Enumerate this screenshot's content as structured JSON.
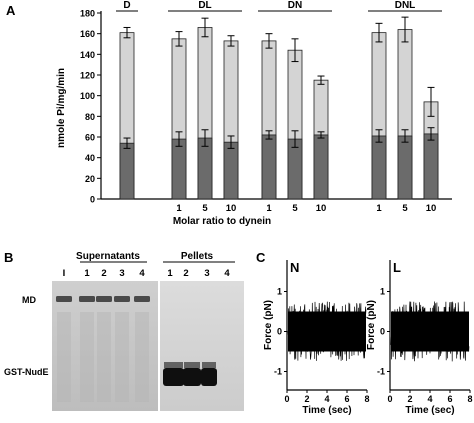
{
  "figure": {
    "panel_a_letter": "A",
    "panel_b_letter": "B",
    "panel_c_letter": "C"
  },
  "chart_data": [
    {
      "type": "bar",
      "panel": "A",
      "ylabel": "nmole Pi/mg/min",
      "xlabel": "Molar ratio to dynein",
      "ylim": [
        0,
        180
      ],
      "yticks": [
        0,
        20,
        40,
        60,
        80,
        100,
        120,
        140,
        160,
        180
      ],
      "groups": [
        {
          "label": "D",
          "bars": [
            {
              "tick": "",
              "light": 161,
              "light_err": 5,
              "dark": 54,
              "dark_err": 5
            }
          ]
        },
        {
          "label": "DL",
          "bars": [
            {
              "tick": "1",
              "light": 155,
              "light_err": 7,
              "dark": 58,
              "dark_err": 7
            },
            {
              "tick": "5",
              "light": 166,
              "light_err": 9,
              "dark": 59,
              "dark_err": 8
            },
            {
              "tick": "10",
              "light": 153,
              "light_err": 5,
              "dark": 55,
              "dark_err": 6
            }
          ]
        },
        {
          "label": "DN",
          "bars": [
            {
              "tick": "1",
              "light": 153,
              "light_err": 7,
              "dark": 62,
              "dark_err": 4
            },
            {
              "tick": "5",
              "light": 144,
              "light_err": 11,
              "dark": 58,
              "dark_err": 8
            },
            {
              "tick": "10",
              "light": 115,
              "light_err": 4,
              "dark": 62,
              "dark_err": 3
            }
          ]
        },
        {
          "label": "DNL",
          "bars": [
            {
              "tick": "1",
              "light": 161,
              "light_err": 9,
              "dark": 61,
              "dark_err": 6
            },
            {
              "tick": "5",
              "light": 164,
              "light_err": 12,
              "dark": 61,
              "dark_err": 6
            },
            {
              "tick": "10",
              "light": 94,
              "light_err": 14,
              "dark": 63,
              "dark_err": 6
            }
          ]
        }
      ],
      "colors": {
        "light": "#d4d4d4",
        "dark": "#6b6b6b"
      }
    },
    {
      "type": "line",
      "panel": "C",
      "label": "N",
      "ylabel": "Force (pN)",
      "xlabel": "Time (sec)",
      "xlim": [
        0,
        8
      ],
      "xticks": [
        "0",
        "2",
        "4",
        "6",
        "8"
      ],
      "ylim": [
        -1.5,
        1.5
      ],
      "yticks": [
        "-1",
        "0",
        "1"
      ]
    },
    {
      "type": "line",
      "panel": "C",
      "label": "L",
      "ylabel": "Force (pN)",
      "xlabel": "Time (sec)",
      "xlim": [
        0,
        8
      ],
      "xticks": [
        "0",
        "2",
        "4",
        "6",
        "8"
      ],
      "ylim": [
        -1.5,
        1.5
      ],
      "yticks": [
        "-1",
        "0",
        "1"
      ]
    }
  ],
  "gel": {
    "supernatants_title": "Supernatants",
    "pellets_title": "Pellets",
    "sup_lanes": [
      "I",
      "1",
      "2",
      "3",
      "4"
    ],
    "pel_lanes": [
      "1",
      "2",
      "3",
      "4"
    ],
    "band_md": "MD",
    "band_gst": "GST-NudE"
  }
}
